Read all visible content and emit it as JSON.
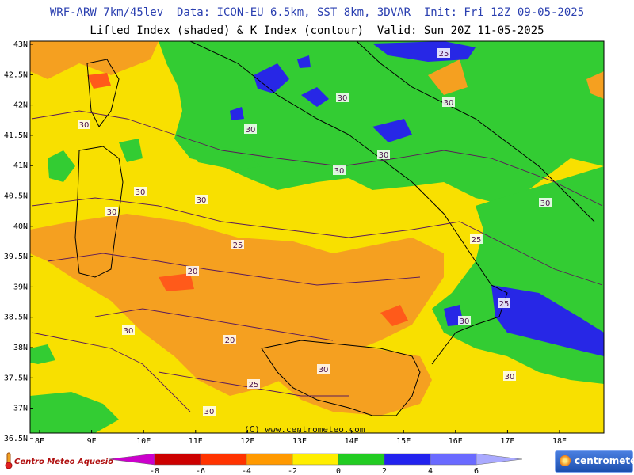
{
  "header": {
    "line1": "WRF-ARW 7km/45lev  Data: ICON-EU 6.5km, SST 8km, 3DVAR  Init: Fri 12Z 09-05-2025",
    "line2": "Lifted Index (shaded) & K Index (contour)  Valid: Sun 20Z 11-05-2025"
  },
  "lat_labels": [
    "43N",
    "42.5N",
    "42N",
    "41.5N",
    "41N",
    "40.5N",
    "40N",
    "39.5N",
    "39N",
    "38.5N",
    "38N",
    "37.5N",
    "37N",
    "36.5N"
  ],
  "lon_labels": [
    "8E",
    "9E",
    "10E",
    "11E",
    "12E",
    "13E",
    "14E",
    "15E",
    "16E",
    "17E",
    "18E"
  ],
  "contour_labels": [
    "25",
    "30",
    "30",
    "30",
    "30",
    "30",
    "30",
    "25",
    "30",
    "30",
    "30",
    "30",
    "25",
    "20",
    "20",
    "30",
    "25",
    "30",
    "30",
    "25",
    "30",
    "30"
  ],
  "credit": "(C) www.centrometeo.com",
  "colorbar": {
    "ticks": [
      "-8",
      "-6",
      "-4",
      "-2",
      "0",
      "2",
      "4",
      "6"
    ],
    "colors": [
      "#cc00cc",
      "#cc0000",
      "#ff3300",
      "#ff9900",
      "#ffee00",
      "#22cc22",
      "#2222ee",
      "#6a6aff",
      "#aaaaff"
    ]
  },
  "logos": {
    "left": "Centro Meteo Aquesio",
    "right": "centrometeo"
  },
  "field_colors": {
    "yellow": "#f8e000",
    "orange": "#f5a020",
    "green": "#33cc33",
    "blue": "#2727e6",
    "red_orange": "#ff5a1a"
  }
}
